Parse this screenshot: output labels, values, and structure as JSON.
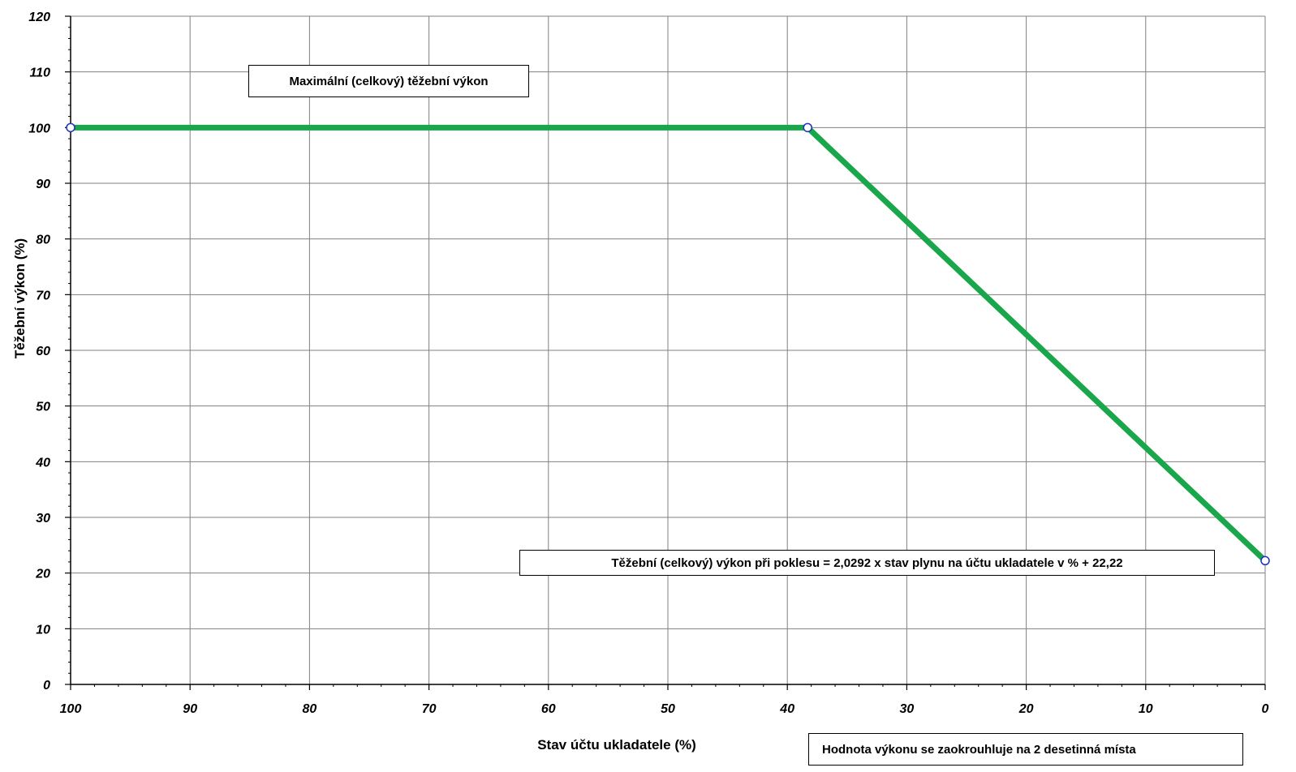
{
  "chart_data": {
    "type": "line",
    "xlabel": "Stav účtu ukladatele (%)",
    "ylabel": "Těžební výkon  (%)",
    "xlim": [
      100,
      0
    ],
    "ylim": [
      0,
      120
    ],
    "x_reversed": true,
    "x_ticks": [
      "100",
      "90",
      "80",
      "70",
      "60",
      "50",
      "40",
      "30",
      "20",
      "10",
      "0"
    ],
    "y_ticks": [
      "0",
      "10",
      "20",
      "30",
      "40",
      "50",
      "60",
      "70",
      "80",
      "90",
      "100",
      "110",
      "120"
    ],
    "grid": true,
    "series": [
      {
        "x": [
          100,
          38.3,
          0
        ],
        "y": [
          100,
          100,
          22.22
        ],
        "color": "#1aa64a",
        "marker_color": "#1f2fbf"
      }
    ],
    "annotations": [
      "Maximální (celkový) těžební výkon",
      "Těžební (celkový) výkon při poklesu = 2,0292 x stav plynu na účtu ukladatele v % + 22,22",
      "Hodnota výkonu se zaokrouhluje na 2 desetinná místa"
    ]
  }
}
